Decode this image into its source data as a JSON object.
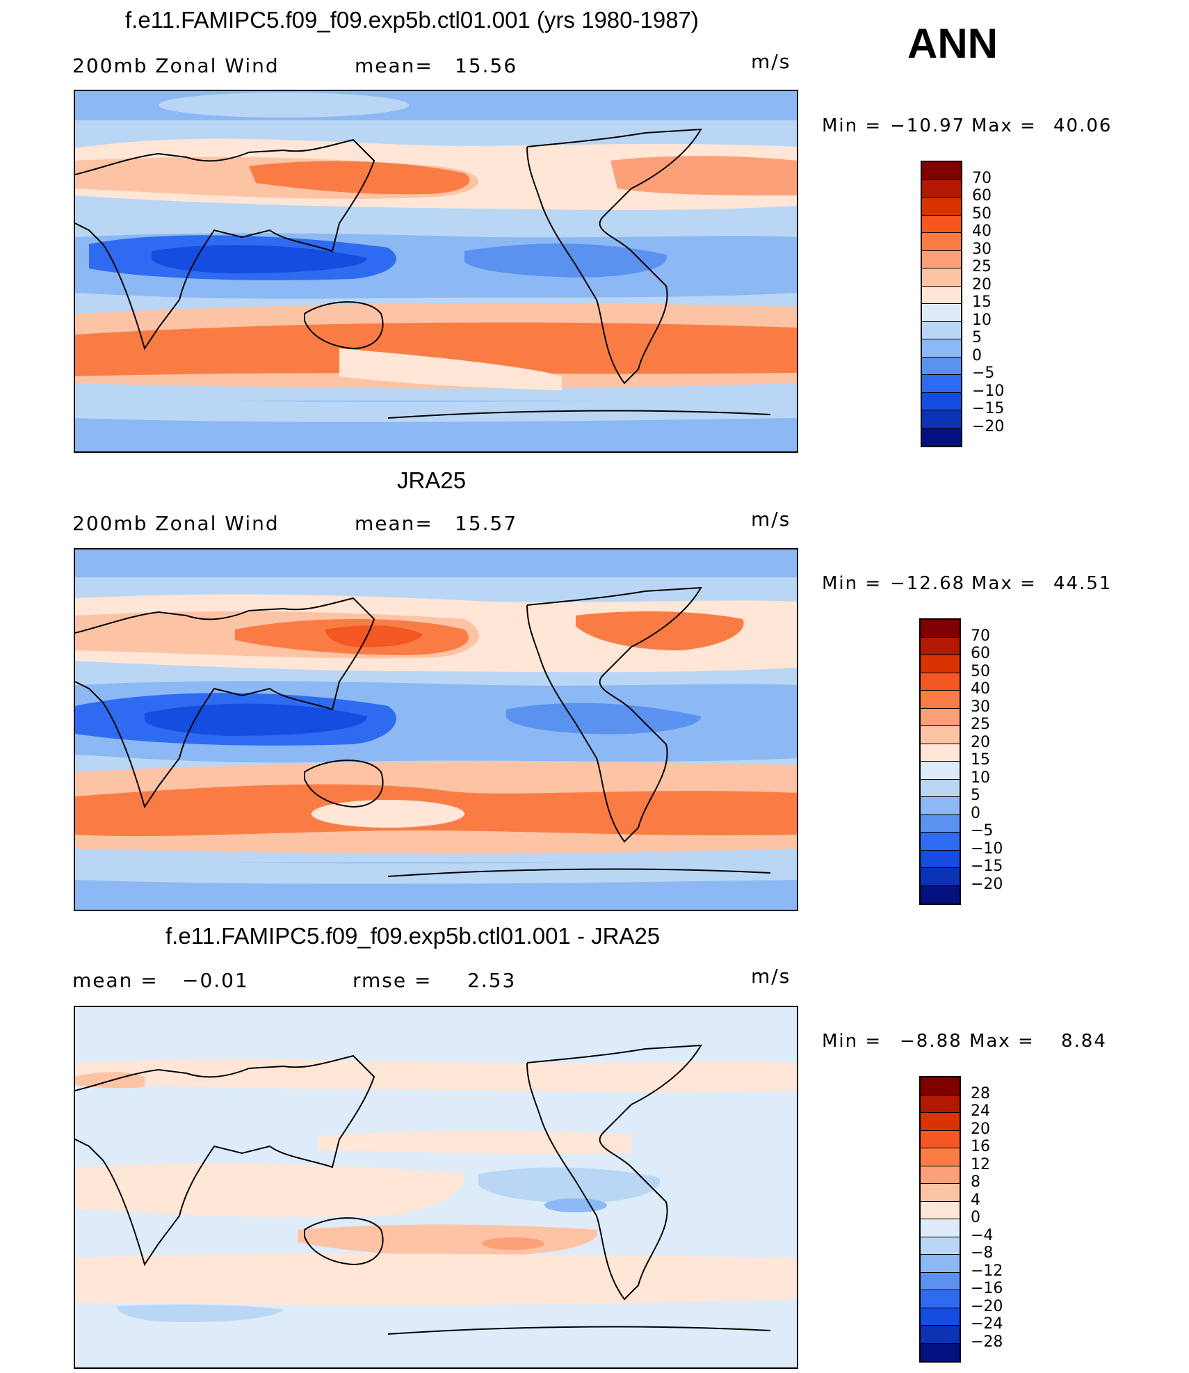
{
  "figure": {
    "season": "ANN",
    "panels": [
      {
        "title": "f.e11.FAMIPC5.f09_f09.exp5b.ctl01.001 (yrs 1980-1987)",
        "left_label": "200mb Zonal Wind",
        "center_label": "mean=",
        "center_value": "15.56",
        "units": "m/s",
        "min_label": "Min =",
        "min_value": "−10.97",
        "max_label": "Max =",
        "max_value": "40.06",
        "map_name": "model-200mb-zonal-wind-map"
      },
      {
        "title": "JRA25",
        "left_label": "200mb Zonal Wind",
        "center_label": "mean=",
        "center_value": "15.57",
        "units": "m/s",
        "min_label": "Min =",
        "min_value": "−12.68",
        "max_label": "Max =",
        "max_value": "44.51",
        "map_name": "obs-200mb-zonal-wind-map"
      },
      {
        "title": "f.e11.FAMIPC5.f09_f09.exp5b.ctl01.001 - JRA25",
        "left_label": "mean =",
        "left_value": "−0.01",
        "center_label": "rmse =",
        "center_value": "2.53",
        "units": "m/s",
        "min_label": "Min =",
        "min_value": "−8.88",
        "max_label": "Max =",
        "max_value": "8.84",
        "map_name": "difference-map"
      }
    ]
  },
  "colorbars": {
    "absolute": {
      "labels": [
        "70",
        "60",
        "50",
        "40",
        "30",
        "25",
        "20",
        "15",
        "10",
        "5",
        "0",
        "−5",
        "−10",
        "−15",
        "−20"
      ],
      "colors": [
        "#7f0000",
        "#b21900",
        "#d83300",
        "#f45722",
        "#fa7c45",
        "#fca07a",
        "#fdc3a5",
        "#ffe6d6",
        "#deecfa",
        "#b9d6f5",
        "#8cb8f3",
        "#5b92f0",
        "#2f6bf0",
        "#144de0",
        "#0d33b5",
        "#05117e"
      ]
    },
    "difference": {
      "labels": [
        "28",
        "24",
        "20",
        "16",
        "12",
        "8",
        "4",
        "0",
        "−4",
        "−8",
        "−12",
        "−16",
        "−20",
        "−24",
        "−28"
      ],
      "colors": [
        "#7f0000",
        "#b21900",
        "#d83300",
        "#f45722",
        "#fa7c45",
        "#fca07a",
        "#fdc3a5",
        "#ffe6d6",
        "#deecfa",
        "#b9d6f5",
        "#8cb8f3",
        "#5b92f0",
        "#2f6bf0",
        "#144de0",
        "#0d33b5",
        "#05117e"
      ]
    }
  },
  "map_fields": {
    "model": [
      {
        "level": "10",
        "band": "arctic"
      },
      {
        "level": "5",
        "band": "nh-subpolar"
      },
      {
        "level": "25",
        "band": "nh-midlat"
      },
      {
        "level": "40",
        "band": "asian-jet"
      },
      {
        "level": "30",
        "band": "pacific-jet"
      },
      {
        "level": "25",
        "band": "atlantic-jet"
      },
      {
        "level": "10",
        "band": "nh-subtropics"
      },
      {
        "level": "-10",
        "band": "tropics"
      },
      {
        "level": "-15",
        "band": "indian-ocean-easterlies"
      },
      {
        "level": "10",
        "band": "sh-subtropics"
      },
      {
        "level": "30",
        "band": "sh-jet"
      },
      {
        "level": "25",
        "band": "sh-midlat"
      },
      {
        "level": "5",
        "band": "antarctic"
      }
    ],
    "obs": [
      {
        "level": "10",
        "band": "arctic"
      },
      {
        "level": "5",
        "band": "nh-subpolar"
      },
      {
        "level": "25",
        "band": "nh-midlat"
      },
      {
        "level": "40",
        "band": "asian-jet"
      },
      {
        "level": "30",
        "band": "atlantic-jet"
      },
      {
        "level": "10",
        "band": "nh-subtropics"
      },
      {
        "level": "-10",
        "band": "tropics"
      },
      {
        "level": "-15",
        "band": "indian-ocean-easterlies"
      },
      {
        "level": "10",
        "band": "sh-subtropics"
      },
      {
        "level": "30",
        "band": "sh-jet"
      },
      {
        "level": "25",
        "band": "sh-midlat"
      },
      {
        "level": "5",
        "band": "antarctic"
      }
    ],
    "difference": [
      {
        "level": "-4",
        "band": "arctic"
      },
      {
        "level": "4",
        "band": "nh-midlat"
      },
      {
        "level": "-4",
        "band": "nh-subtropics"
      },
      {
        "level": "4",
        "band": "tropics"
      },
      {
        "level": "-8",
        "band": "east-pacific"
      },
      {
        "level": "4",
        "band": "south-pacific"
      },
      {
        "level": "8",
        "band": "south-pacific-max"
      },
      {
        "level": "-4",
        "band": "southern-ocean"
      }
    ]
  }
}
